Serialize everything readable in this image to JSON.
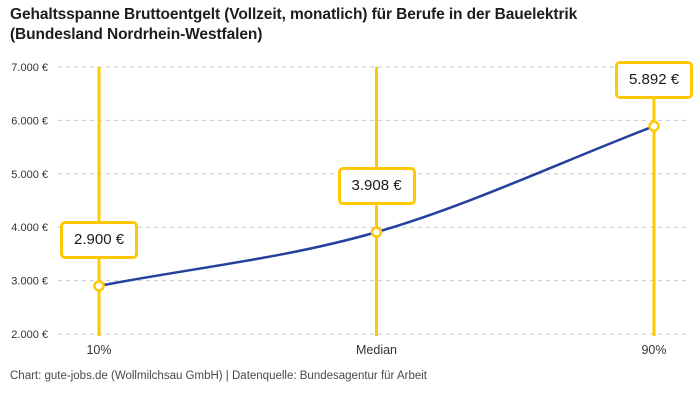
{
  "header": {
    "title_lines": [
      "Gehaltsspanne Bruttoentgelt (Vollzeit, monatlich) für Berufe in der Bauelektrik",
      "(Bundesland Nordrhein-Westfalen)"
    ]
  },
  "footer": {
    "text": "Chart: gute-jobs.de (Wollmilchsau GmbH) | Datenquelle: Bundesagentur für Arbeit"
  },
  "chart_data": {
    "type": "line",
    "title": "Gehaltsspanne Bruttoentgelt (Vollzeit, monatlich) für Berufe in der Bauelektrik (Bundesland Nordrhein-Westfalen)",
    "categories": [
      "10%",
      "Median",
      "90%"
    ],
    "values": [
      2900,
      3908,
      5892
    ],
    "value_labels": [
      "2.900 €",
      "3.908 €",
      "5.892 €"
    ],
    "xlabel": "",
    "ylabel": "",
    "ylim": [
      2000,
      7000
    ],
    "y_ticks": [
      7000,
      6000,
      5000,
      4000,
      3000,
      2000
    ],
    "y_tick_labels": [
      "7.000 €",
      "6.000 €",
      "5.000 €",
      "4.000 €",
      "3.000 €",
      "2.000 €"
    ],
    "grid": "horizontal-dashed",
    "legend": "none",
    "colors": {
      "line": "#24409E",
      "accent_yellow": "#FFC805",
      "grid": "#c9c9c9",
      "axis_text": "#333333",
      "label_text": "#1a1a1a"
    }
  }
}
